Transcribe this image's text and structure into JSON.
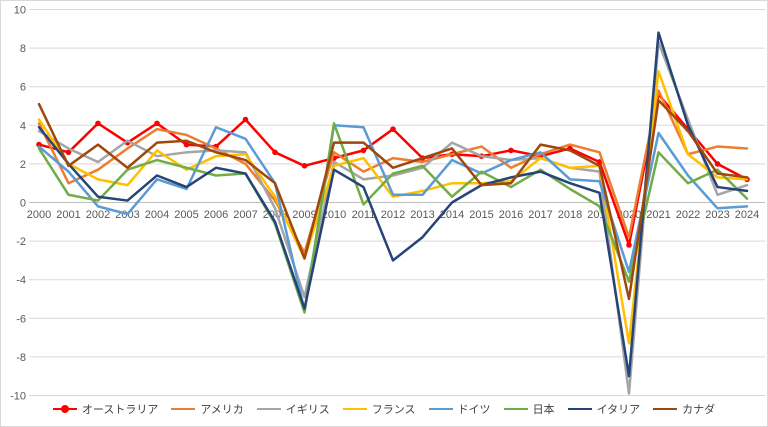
{
  "chart_data": {
    "type": "line",
    "title": "",
    "xlabel": "",
    "ylabel": "",
    "grid": true,
    "legend_position": "bottom",
    "ylim": [
      -10,
      10
    ],
    "y_tick_step": 2,
    "y_ticks": [
      10,
      8,
      6,
      4,
      2,
      0,
      -2,
      -4,
      -6,
      -8,
      -10
    ],
    "x": [
      2000,
      2001,
      2002,
      2003,
      2004,
      2005,
      2006,
      2007,
      2008,
      2009,
      2010,
      2011,
      2012,
      2013,
      2014,
      2015,
      2016,
      2017,
      2018,
      2019,
      2020,
      2021,
      2022,
      2023,
      2024
    ],
    "series": [
      {
        "name": "オーストラリア",
        "key": "australia",
        "color": "#FF0000",
        "marker": "circle",
        "values": [
          3.0,
          2.6,
          4.1,
          3.1,
          4.1,
          3.0,
          2.9,
          4.3,
          2.6,
          1.9,
          2.3,
          2.7,
          3.8,
          2.3,
          2.5,
          2.4,
          2.7,
          2.4,
          2.8,
          2.1,
          -2.2,
          5.6,
          3.8,
          2.0,
          1.2
        ]
      },
      {
        "name": "アメリカ",
        "key": "usa",
        "color": "#ED7D31",
        "marker": "none",
        "values": [
          4.1,
          1.0,
          1.7,
          2.8,
          3.8,
          3.5,
          2.8,
          2.0,
          0.1,
          -2.6,
          2.6,
          1.6,
          2.3,
          2.1,
          2.5,
          2.9,
          1.8,
          2.5,
          3.0,
          2.6,
          -1.8,
          5.8,
          2.5,
          2.9,
          2.8
        ]
      },
      {
        "name": "イギリス",
        "key": "uk",
        "color": "#A5A5A5",
        "marker": "none",
        "values": [
          3.7,
          2.8,
          2.1,
          3.2,
          2.4,
          2.6,
          2.7,
          2.6,
          -0.3,
          -4.9,
          2.1,
          1.2,
          1.4,
          1.8,
          3.1,
          2.4,
          2.2,
          2.3,
          1.8,
          1.6,
          -9.9,
          8.3,
          4.3,
          0.4,
          0.9
        ]
      },
      {
        "name": "フランス",
        "key": "france",
        "color": "#FFC000",
        "marker": "none",
        "values": [
          4.3,
          2.0,
          1.2,
          0.9,
          2.7,
          1.7,
          2.4,
          2.5,
          0.3,
          -2.9,
          1.9,
          2.3,
          0.3,
          0.6,
          1.0,
          1.0,
          1.1,
          2.3,
          1.8,
          1.9,
          -7.3,
          6.8,
          2.5,
          1.3,
          1.2
        ]
      },
      {
        "name": "ドイツ",
        "key": "germany",
        "color": "#5B9BD5",
        "marker": "none",
        "values": [
          2.9,
          1.6,
          -0.2,
          -0.6,
          1.2,
          0.7,
          3.9,
          3.3,
          1.0,
          -5.6,
          4.0,
          3.9,
          0.4,
          0.4,
          2.2,
          1.5,
          2.2,
          2.6,
          1.2,
          1.1,
          -3.6,
          3.6,
          1.4,
          -0.3,
          -0.2
        ]
      },
      {
        "name": "日本",
        "key": "japan",
        "color": "#70AD47",
        "marker": "none",
        "values": [
          2.8,
          0.4,
          0.1,
          1.7,
          2.2,
          1.8,
          1.4,
          1.5,
          -1.1,
          -5.7,
          4.1,
          -0.1,
          1.5,
          1.9,
          0.3,
          1.6,
          0.8,
          1.7,
          0.7,
          -0.2,
          -4.1,
          2.6,
          1.0,
          1.7,
          0.2
        ]
      },
      {
        "name": "イタリア",
        "key": "italy",
        "color": "#264478",
        "marker": "none",
        "values": [
          3.9,
          2.0,
          0.3,
          0.1,
          1.4,
          0.8,
          1.8,
          1.5,
          -1.0,
          -5.5,
          1.7,
          0.8,
          -3.0,
          -1.8,
          0.0,
          0.9,
          1.3,
          1.6,
          1.0,
          0.5,
          -9.0,
          8.8,
          4.0,
          0.8,
          0.6
        ]
      },
      {
        "name": "カナダ",
        "key": "canada",
        "color": "#9E480E",
        "marker": "none",
        "values": [
          5.1,
          1.9,
          3.0,
          1.8,
          3.1,
          3.2,
          2.6,
          2.2,
          1.0,
          -2.9,
          3.1,
          3.1,
          1.8,
          2.3,
          2.8,
          0.9,
          1.0,
          3.0,
          2.7,
          1.9,
          -5.0,
          5.3,
          3.7,
          1.5,
          1.3
        ]
      }
    ]
  },
  "colors": {
    "gridline": "#D9D9D9",
    "zero_axis": "#BFBFBF",
    "tick_label": "#595959",
    "legend_text": "#404040",
    "chart_border": "#D9D9D9",
    "background": "#FFFFFF"
  }
}
